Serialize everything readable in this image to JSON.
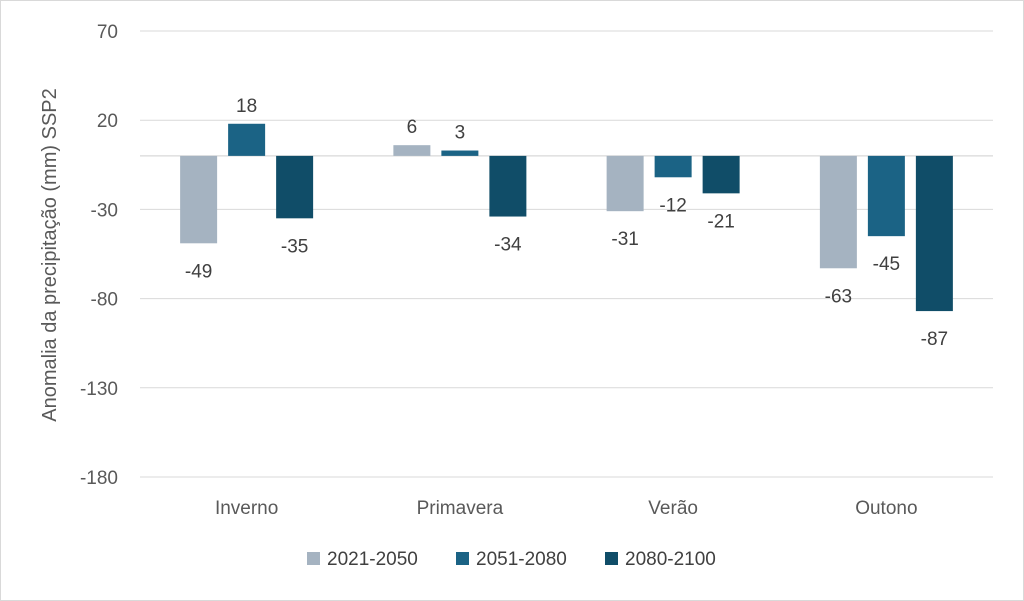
{
  "chart_data": {
    "type": "bar",
    "ylabel": "Anomalia da precipitação (mm) SSP2",
    "xlabel": "",
    "ylim": [
      -180,
      70
    ],
    "yticks": [
      70,
      20,
      -30,
      -80,
      -130,
      -180
    ],
    "categories": [
      "Inverno",
      "Primavera",
      "Verão",
      "Outono"
    ],
    "series": [
      {
        "name": "2021-2050",
        "color": "#a5b3c1",
        "values": [
          -49,
          6,
          -31,
          -63
        ]
      },
      {
        "name": "2051-2080",
        "color": "#1b6385",
        "values": [
          18,
          3,
          -12,
          -45
        ]
      },
      {
        "name": "2080-2100",
        "color": "#104d68",
        "values": [
          -35,
          -34,
          -21,
          -87
        ]
      }
    ],
    "grid": true,
    "legend_position": "bottom",
    "data_labels": true
  }
}
